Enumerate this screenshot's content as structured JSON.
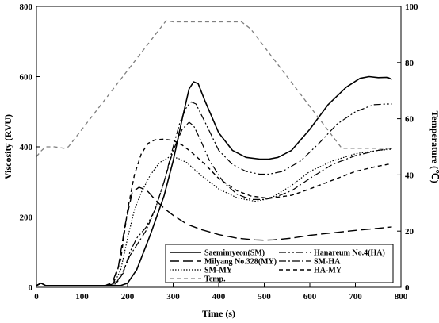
{
  "chart_data": {
    "type": "line",
    "title": "",
    "xlabel": "Time (s)",
    "ylabel": "Viscosity (RVU)",
    "y2label": "Temperature (℃)",
    "xlim": [
      0,
      800
    ],
    "ylim": [
      0,
      800
    ],
    "y2lim": [
      0,
      100
    ],
    "xticks": [
      "0",
      "100",
      "200",
      "300",
      "400",
      "500",
      "600",
      "700",
      "800"
    ],
    "yticks": [
      "0",
      "200",
      "400",
      "600",
      "800"
    ],
    "y2ticks": [
      "0",
      "20",
      "40",
      "60",
      "80",
      "100"
    ],
    "legend_position": "bottom-right",
    "series": [
      {
        "name": "Saemimyeon(SM)",
        "axis": "left",
        "color": "#000000",
        "dash": "solid",
        "x": [
          0,
          10,
          20,
          100,
          150,
          170,
          185,
          200,
          220,
          250,
          280,
          300,
          320,
          335,
          345,
          355,
          370,
          400,
          430,
          460,
          490,
          510,
          530,
          560,
          600,
          640,
          680,
          710,
          730,
          750,
          770,
          780
        ],
        "y": [
          5,
          12,
          5,
          5,
          5,
          5,
          5,
          12,
          50,
          150,
          260,
          360,
          480,
          565,
          585,
          580,
          530,
          440,
          390,
          370,
          365,
          365,
          370,
          390,
          450,
          520,
          570,
          595,
          600,
          597,
          598,
          592
        ]
      },
      {
        "name": "Milyang No.328(MY)",
        "axis": "left",
        "color": "#000000",
        "dash": "long",
        "x": [
          0,
          10,
          20,
          150,
          165,
          180,
          195,
          210,
          225,
          235,
          245,
          260,
          280,
          300,
          330,
          360,
          400,
          440,
          480,
          500,
          520,
          560,
          600,
          650,
          700,
          750,
          780
        ],
        "y": [
          5,
          12,
          5,
          5,
          8,
          60,
          180,
          270,
          285,
          280,
          272,
          250,
          225,
          205,
          180,
          165,
          150,
          140,
          135,
          134,
          135,
          140,
          148,
          155,
          162,
          168,
          172
        ]
      },
      {
        "name": "SM-MY",
        "axis": "left",
        "color": "#000000",
        "dash": "dot",
        "x": [
          0,
          10,
          20,
          150,
          170,
          185,
          200,
          215,
          230,
          250,
          270,
          290,
          310,
          330,
          360,
          400,
          440,
          480,
          500,
          520,
          560,
          600,
          650,
          700,
          750,
          780
        ],
        "y": [
          5,
          12,
          5,
          5,
          10,
          50,
          140,
          220,
          270,
          320,
          355,
          370,
          368,
          355,
          320,
          280,
          255,
          245,
          250,
          258,
          290,
          330,
          360,
          380,
          390,
          393
        ]
      },
      {
        "name": "Hanareum No.4(HA)",
        "axis": "left",
        "color": "#000000",
        "dash": "dashdotdot",
        "x": [
          0,
          10,
          20,
          150,
          175,
          190,
          205,
          220,
          240,
          260,
          280,
          300,
          315,
          330,
          340,
          350,
          370,
          400,
          430,
          460,
          490,
          510,
          540,
          580,
          620,
          660,
          700,
          740,
          770,
          780
        ],
        "y": [
          5,
          12,
          5,
          5,
          10,
          40,
          100,
          140,
          170,
          220,
          300,
          400,
          470,
          515,
          528,
          522,
          470,
          390,
          350,
          330,
          322,
          322,
          330,
          360,
          410,
          465,
          500,
          520,
          522,
          522
        ]
      },
      {
        "name": "SM-HA",
        "axis": "left",
        "color": "#000000",
        "dash": "dashdot",
        "x": [
          0,
          10,
          20,
          150,
          175,
          190,
          205,
          220,
          240,
          260,
          280,
          300,
          320,
          335,
          345,
          360,
          380,
          410,
          440,
          470,
          500,
          520,
          560,
          600,
          650,
          700,
          750,
          780
        ],
        "y": [
          5,
          12,
          5,
          5,
          12,
          45,
          90,
          120,
          160,
          220,
          300,
          390,
          450,
          470,
          460,
          420,
          360,
          300,
          265,
          250,
          250,
          255,
          275,
          310,
          350,
          375,
          390,
          395
        ]
      },
      {
        "name": "HA-MY",
        "axis": "left",
        "color": "#000000",
        "dash": "dash",
        "x": [
          0,
          10,
          20,
          150,
          170,
          185,
          200,
          215,
          230,
          245,
          260,
          280,
          300,
          320,
          340,
          370,
          400,
          440,
          470,
          500,
          520,
          560,
          600,
          650,
          700,
          750,
          780
        ],
        "y": [
          5,
          12,
          5,
          5,
          15,
          80,
          220,
          320,
          380,
          410,
          420,
          422,
          418,
          405,
          385,
          350,
          310,
          275,
          260,
          255,
          255,
          262,
          280,
          305,
          330,
          345,
          352
        ]
      },
      {
        "name": "Temp.",
        "axis": "right",
        "color": "#7f7f7f",
        "dash": "dash",
        "x": [
          0,
          10,
          20,
          40,
          60,
          70,
          285,
          300,
          450,
          470,
          670,
          700,
          780
        ],
        "y": [
          46.5,
          48.5,
          50,
          50,
          49.5,
          50,
          95,
          94.5,
          94.5,
          92,
          49.5,
          49.5,
          49.5
        ]
      }
    ],
    "legend_order": [
      0,
      3,
      1,
      4,
      2,
      5,
      6
    ]
  }
}
